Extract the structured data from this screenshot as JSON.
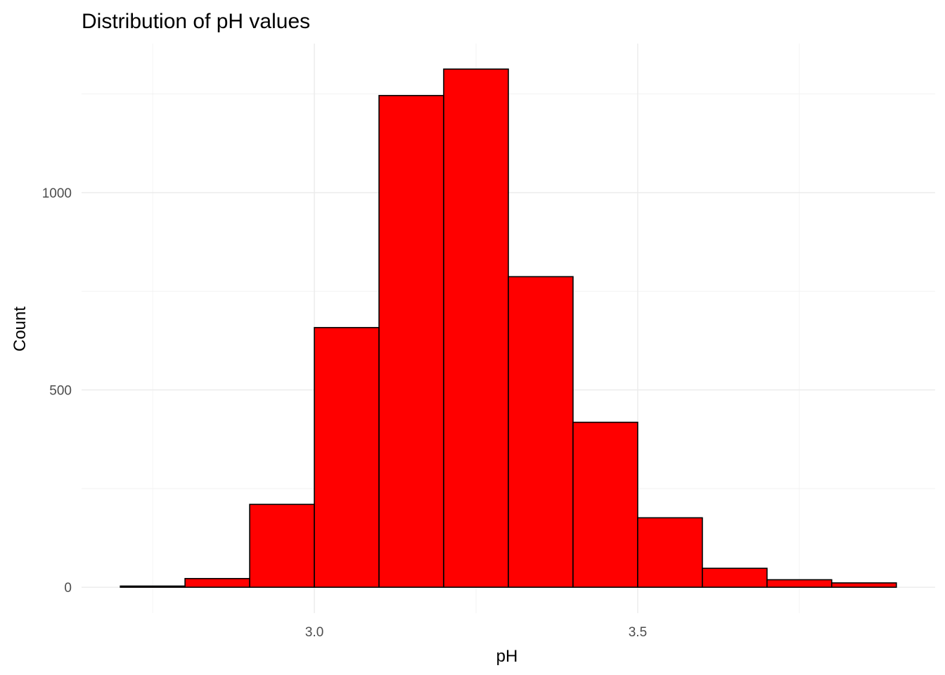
{
  "chart_data": {
    "type": "bar",
    "title": "Distribution of pH values",
    "xlabel": "pH",
    "ylabel": "Count",
    "bin_width": 0.1,
    "bins": [
      {
        "x0": 2.7,
        "x1": 2.8,
        "count": 3
      },
      {
        "x0": 2.8,
        "x1": 2.9,
        "count": 22
      },
      {
        "x0": 2.9,
        "x1": 3.0,
        "count": 210
      },
      {
        "x0": 3.0,
        "x1": 3.1,
        "count": 658
      },
      {
        "x0": 3.1,
        "x1": 3.2,
        "count": 1246
      },
      {
        "x0": 3.2,
        "x1": 3.3,
        "count": 1313
      },
      {
        "x0": 3.3,
        "x1": 3.4,
        "count": 787
      },
      {
        "x0": 3.4,
        "x1": 3.5,
        "count": 418
      },
      {
        "x0": 3.5,
        "x1": 3.6,
        "count": 176
      },
      {
        "x0": 3.6,
        "x1": 3.7,
        "count": 48
      },
      {
        "x0": 3.7,
        "x1": 3.8,
        "count": 19
      },
      {
        "x0": 3.8,
        "x1": 3.9,
        "count": 11
      }
    ],
    "x_ticks": [
      {
        "value": 3.0,
        "label": "3.0"
      },
      {
        "value": 3.5,
        "label": "3.5"
      }
    ],
    "x_minor": [
      2.75,
      3.25,
      3.75
    ],
    "y_ticks": [
      {
        "value": 0,
        "label": "0"
      },
      {
        "value": 500,
        "label": "500"
      },
      {
        "value": 1000,
        "label": "1000"
      }
    ],
    "y_minor": [
      250,
      750,
      1250
    ],
    "xlim": [
      2.64,
      3.96
    ],
    "ylim": [
      -65.6,
      1377.6
    ],
    "grid": true,
    "legend": "none",
    "colors": {
      "bar_fill": "#ff0000",
      "bar_outline": "#000000"
    }
  }
}
